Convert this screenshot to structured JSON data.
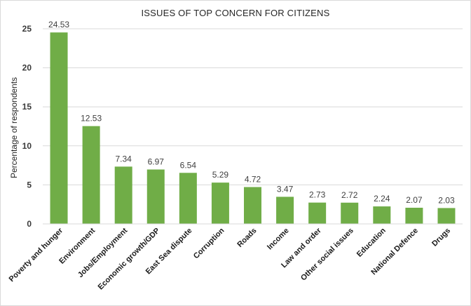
{
  "chart_data": {
    "type": "bar",
    "title": "ISSUES OF TOP CONCERN  FOR CITIZENS",
    "xlabel": "",
    "ylabel": "Percentage of respondents",
    "categories": [
      "Poverty and hunger",
      "Environment",
      "Jobs/Employment",
      "Economic growth/GDP",
      "East Sea dispute",
      "Corruption",
      "Roads",
      "Income",
      "Law and order",
      "Other social issues",
      "Education",
      "National Defence",
      "Drugs"
    ],
    "values": [
      24.53,
      12.53,
      7.34,
      6.97,
      6.54,
      5.29,
      4.72,
      3.47,
      2.73,
      2.72,
      2.24,
      2.07,
      2.03
    ],
    "value_labels": [
      "24.53",
      "12.53",
      "7.34",
      "6.97",
      "6.54",
      "5.29",
      "4.72",
      "3.47",
      "2.73",
      "2.72",
      "2.24",
      "2.07",
      "2.03"
    ],
    "ylim": [
      0,
      25
    ],
    "yticks": [
      "0",
      "5",
      "10",
      "15",
      "20",
      "25"
    ],
    "grid": true,
    "legend": "none",
    "bar_color": "#70ad47",
    "grid_color": "#d9d9d9"
  }
}
